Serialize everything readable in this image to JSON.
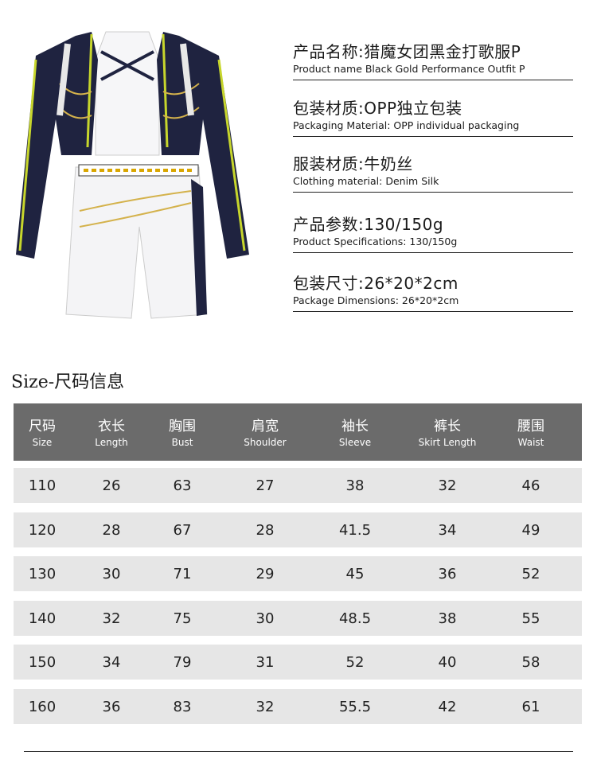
{
  "specs": [
    {
      "cn": "产品名称:猎魔女团黑金打歌服P",
      "en": "Product name Black Gold Performance Outfit P"
    },
    {
      "cn": "包装材质:OPP独立包装",
      "en": "Packaging Material: OPP individual packaging"
    },
    {
      "cn": "服装材质:牛奶丝",
      "en": "Clothing material: Denim Silk"
    },
    {
      "cn": "产品参数:130/150g",
      "en": "Product Specifications: 130/150g"
    },
    {
      "cn": "包装尺寸:26*20*2cm",
      "en": "Package Dimensions: 26*20*2cm"
    }
  ],
  "size_table": {
    "title": "Size-尺码信息",
    "header_bg": "#6b6b6b",
    "row_bg": "#e6e6e6",
    "columns": [
      {
        "cn": "尺码",
        "en": "Size"
      },
      {
        "cn": "衣长",
        "en": "Length"
      },
      {
        "cn": "胸围",
        "en": "Bust"
      },
      {
        "cn": "肩宽",
        "en": "Shoulder"
      },
      {
        "cn": "袖长",
        "en": "Sleeve"
      },
      {
        "cn": "裤长",
        "en": "Skirt Length"
      },
      {
        "cn": "腰围",
        "en": "Waist"
      }
    ],
    "rows": [
      [
        "110",
        "26",
        "63",
        "27",
        "38",
        "32",
        "46"
      ],
      [
        "120",
        "28",
        "67",
        "28",
        "41.5",
        "34",
        "49"
      ],
      [
        "130",
        "30",
        "71",
        "29",
        "45",
        "36",
        "52"
      ],
      [
        "140",
        "32",
        "75",
        "30",
        "48.5",
        "38",
        "55"
      ],
      [
        "150",
        "34",
        "79",
        "31",
        "52",
        "40",
        "58"
      ],
      [
        "160",
        "36",
        "83",
        "32",
        "55.5",
        "42",
        "61"
      ]
    ]
  }
}
